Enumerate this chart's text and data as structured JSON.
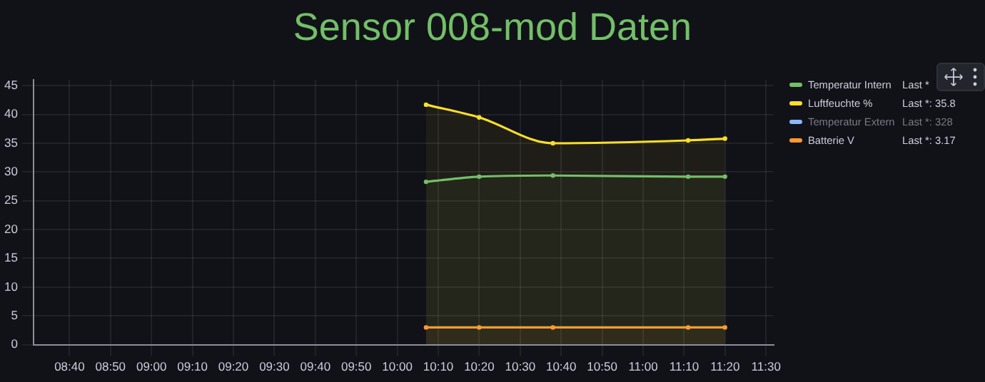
{
  "chart_data": {
    "type": "line",
    "title": "Sensor 008-mod Daten",
    "x": [
      10.117,
      10.333,
      10.633,
      11.183,
      11.333
    ],
    "series": [
      {
        "name": "Temperatur Intern",
        "type": "area",
        "color": "#73bf69",
        "values": [
          28.3,
          29.2,
          29.4,
          29.2,
          29.2
        ]
      },
      {
        "name": "Luftfeuchte %",
        "type": "area",
        "color": "#fade2a",
        "values": [
          41.7,
          39.5,
          35.0,
          35.5,
          35.8
        ]
      },
      {
        "name": "Temperatur Extern",
        "type": "area",
        "color": "#8ab8ff",
        "values": [
          null,
          null,
          null,
          null,
          null
        ]
      },
      {
        "name": "Batterie V",
        "type": "area",
        "color": "#ff9830",
        "values": [
          3,
          3,
          3,
          3,
          3
        ]
      }
    ],
    "xlim": [
      8.52,
      11.53
    ],
    "xticks": [
      {
        "value": 8.6667,
        "label": "08:40"
      },
      {
        "value": 8.8333,
        "label": "08:50"
      },
      {
        "value": 9,
        "label": "09:00"
      },
      {
        "value": 9.1667,
        "label": "09:10"
      },
      {
        "value": 9.3333,
        "label": "09:20"
      },
      {
        "value": 9.5,
        "label": "09:30"
      },
      {
        "value": 9.6667,
        "label": "09:40"
      },
      {
        "value": 9.8333,
        "label": "09:50"
      },
      {
        "value": 10,
        "label": "10:00"
      },
      {
        "value": 10.1667,
        "label": "10:10"
      },
      {
        "value": 10.3333,
        "label": "10:20"
      },
      {
        "value": 10.5,
        "label": "10:30"
      },
      {
        "value": 10.6667,
        "label": "10:40"
      },
      {
        "value": 10.8333,
        "label": "10:50"
      },
      {
        "value": 11,
        "label": "11:00"
      },
      {
        "value": 11.1667,
        "label": "11:10"
      },
      {
        "value": 11.3333,
        "label": "11:20"
      },
      {
        "value": 11.5,
        "label": "11:30"
      }
    ],
    "ylim": [
      0,
      46
    ],
    "yticks": [
      0,
      5,
      10,
      15,
      20,
      25,
      30,
      35,
      40,
      45
    ],
    "annotations": [
      "Last *",
      "Last *: 35.8",
      "Last *: 328",
      "Last *: 3.17"
    ],
    "grid": true,
    "legend": "right",
    "marker": "circle",
    "line_style": "solid"
  }
}
